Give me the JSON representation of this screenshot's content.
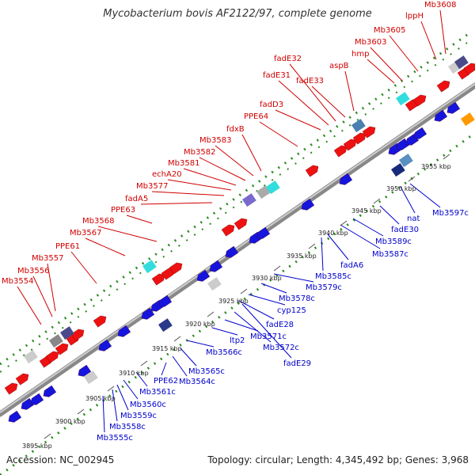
{
  "title": "Mycobacterium bovis AF2122/97, complete genome",
  "footer": {
    "accession": "Accession: NC_002945",
    "summary": "Topology: circular; Length: 4,345,492 bp; Genes: 3,968"
  },
  "colors": {
    "forward_label": "#d00000",
    "reverse_label": "#0000cc",
    "forward_gene": "#ee1111",
    "reverse_gene": "#1515dd",
    "dotted_track": "#2a8a1e",
    "genome_line": "#888888"
  },
  "tick_labels": [
    "3895 kbp",
    "3900 kbp",
    "3905 kbp",
    "3910 kbp",
    "3915 kbp",
    "3920 kbp",
    "3925 kbp",
    "3930 kbp",
    "3935 kbp",
    "3940 kbp",
    "3945 kbp",
    "3950 kbp",
    "3955 kbp"
  ],
  "forward_labels": [
    "Mb3554",
    "Mb3556",
    "Mb3557",
    "PPE61",
    "Mb3567",
    "Mb3568",
    "PPE63",
    "fadA5",
    "Mb3577",
    "echA20",
    "Mb3581",
    "Mb3582",
    "Mb3583",
    "fdxB",
    "PPE64",
    "fadD3",
    "fadE31",
    "fadE32",
    "fadE33",
    "aspB",
    "hmp",
    "Mb3603",
    "Mb3605",
    "lppH",
    "Mb3608"
  ],
  "reverse_labels": [
    "Mb3555c",
    "Mb3558c",
    "Mb3559c",
    "Mb3560c",
    "Mb3561c",
    "PPE62",
    "Mb3564c",
    "Mb3565c",
    "Mb3566c",
    "ltp2",
    "Mb3571c",
    "Mb3572c",
    "fadE29",
    "fadE28",
    "cyp125",
    "Mb3578c",
    "Mb3579c",
    "Mb3585c",
    "fadA6",
    "Mb3587c",
    "Mb3589c",
    "fadE30",
    "nat",
    "Mb3597c"
  ]
}
